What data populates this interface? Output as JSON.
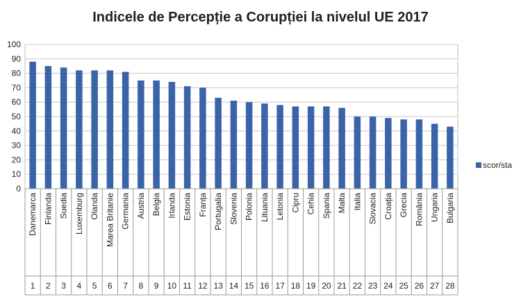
{
  "chart_data": {
    "type": "bar",
    "title": "Indicele de Percepție a Corupției la nivelul UE 2017",
    "xlabel": "",
    "ylabel": "",
    "ylim": [
      0,
      100
    ],
    "yticks": [
      0,
      10,
      20,
      30,
      40,
      50,
      60,
      70,
      80,
      90,
      100
    ],
    "grid": true,
    "legend_position": "right",
    "bar_color": "#3a63a8",
    "categories": [
      "Danemarca",
      "Finlanda",
      "Suedia",
      "Luxemburg",
      "Olanda",
      "Marea Britanie",
      "Germania",
      "Austria",
      "Belgia",
      "Irlanda",
      "Estonia",
      "Franța",
      "Portugalia",
      "Slovenia",
      "Polonia",
      "Lituania",
      "Letonia",
      "Cipru",
      "Cehia",
      "Spania",
      "Malta",
      "Italia",
      "Slovacia",
      "Croația",
      "Grecia",
      "România",
      "Ungaria",
      "Bulgaria"
    ],
    "ranks": [
      "1",
      "2",
      "3",
      "4",
      "5",
      "6",
      "7",
      "8",
      "9",
      "10",
      "11",
      "12",
      "13",
      "14",
      "15",
      "16",
      "17",
      "18",
      "19",
      "20",
      "21",
      "22",
      "23",
      "24",
      "25",
      "26",
      "27",
      "28"
    ],
    "series": [
      {
        "name": "scor/sta",
        "values": [
          88,
          85,
          84,
          82,
          82,
          82,
          81,
          75,
          75,
          74,
          71,
          70,
          63,
          61,
          60,
          59,
          58,
          57,
          57,
          57,
          56,
          50,
          50,
          49,
          48,
          48,
          45,
          43
        ]
      }
    ]
  }
}
